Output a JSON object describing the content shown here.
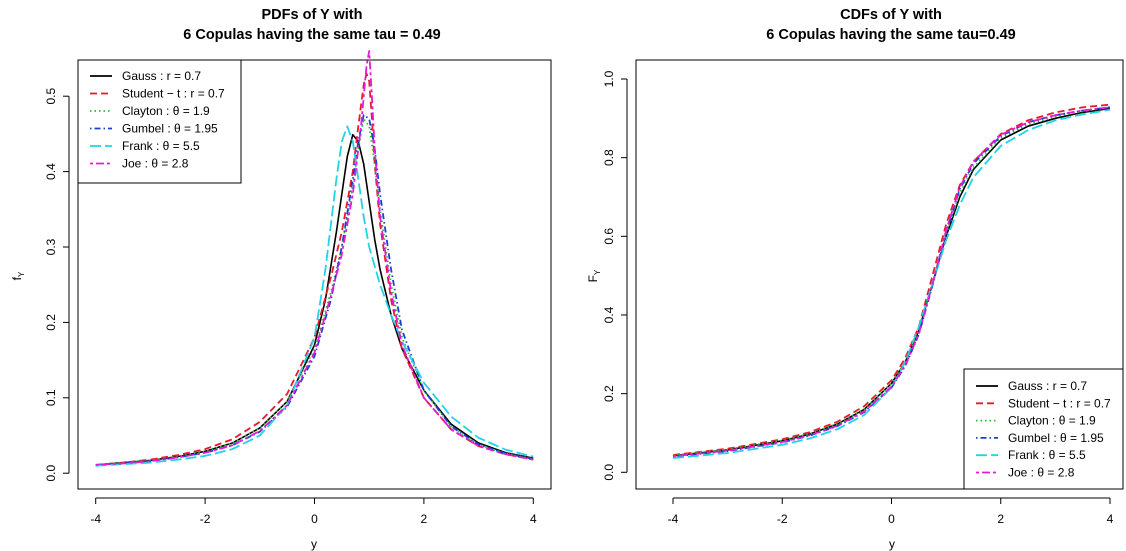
{
  "chart_data": [
    {
      "type": "line",
      "title": [
        "PDFs of Y with",
        "6 Copulas having the same tau = 0.49"
      ],
      "xlabel": "y",
      "ylabel": "f",
      "ylabel_sub": "Y",
      "xlim": [
        -4,
        4
      ],
      "ylim": [
        0,
        0.56
      ],
      "xticks": [
        "-4",
        "-2",
        "0",
        "2",
        "4"
      ],
      "yticks": [
        "0.0",
        "0.1",
        "0.2",
        "0.3",
        "0.4",
        "0.5"
      ],
      "legend_position": "top-left",
      "grid": false,
      "series": [
        {
          "name": "Gauss : r = 0.7",
          "color": "#000000",
          "dash": "solid",
          "x": [
            -4,
            -3.5,
            -3,
            -2.5,
            -2,
            -1.5,
            -1,
            -0.5,
            0,
            0.2,
            0.4,
            0.5,
            0.6,
            0.7,
            0.8,
            0.9,
            1,
            1.1,
            1.2,
            1.4,
            1.6,
            2,
            2.5,
            3,
            3.5,
            4
          ],
          "y": [
            0.011,
            0.014,
            0.017,
            0.022,
            0.029,
            0.04,
            0.06,
            0.095,
            0.17,
            0.23,
            0.32,
            0.37,
            0.42,
            0.449,
            0.44,
            0.41,
            0.36,
            0.31,
            0.27,
            0.21,
            0.165,
            0.11,
            0.065,
            0.04,
            0.027,
            0.02
          ]
        },
        {
          "name": "Student − t : r = 0.7",
          "color": "#e8192c",
          "dash": "dashed",
          "x": [
            -4,
            -3.5,
            -3,
            -2.5,
            -2,
            -1.5,
            -1,
            -0.5,
            0,
            0.3,
            0.5,
            0.7,
            0.8,
            0.9,
            0.95,
            1,
            1.05,
            1.1,
            1.2,
            1.4,
            1.6,
            2,
            2.5,
            3,
            3.5,
            4
          ],
          "y": [
            0.011,
            0.014,
            0.018,
            0.024,
            0.032,
            0.045,
            0.068,
            0.105,
            0.18,
            0.26,
            0.32,
            0.4,
            0.46,
            0.515,
            0.53,
            0.52,
            0.47,
            0.41,
            0.33,
            0.23,
            0.165,
            0.1,
            0.058,
            0.036,
            0.025,
            0.018
          ]
        },
        {
          "name": "Clayton : θ = 1.9",
          "color": "#1fbf2a",
          "dash": "dotted",
          "x": [
            -4,
            -3.5,
            -3,
            -2.5,
            -2,
            -1.5,
            -1,
            -0.5,
            0,
            0.3,
            0.5,
            0.7,
            0.8,
            0.9,
            1,
            1.1,
            1.2,
            1.4,
            1.6,
            2,
            2.5,
            3,
            3.5,
            4
          ],
          "y": [
            0.011,
            0.014,
            0.017,
            0.022,
            0.029,
            0.04,
            0.06,
            0.095,
            0.165,
            0.24,
            0.3,
            0.38,
            0.43,
            0.47,
            0.46,
            0.41,
            0.35,
            0.25,
            0.18,
            0.11,
            0.062,
            0.038,
            0.026,
            0.019
          ]
        },
        {
          "name": "Gumbel : θ = 1.95",
          "color": "#1a3fd6",
          "dash": "dotdash",
          "x": [
            -4,
            -3.5,
            -3,
            -2.5,
            -2,
            -1.5,
            -1,
            -0.5,
            0,
            0.3,
            0.5,
            0.7,
            0.8,
            0.9,
            1,
            1.1,
            1.2,
            1.4,
            1.6,
            2,
            2.5,
            3,
            3.5,
            4
          ],
          "y": [
            0.011,
            0.013,
            0.016,
            0.021,
            0.027,
            0.037,
            0.055,
            0.088,
            0.155,
            0.23,
            0.3,
            0.39,
            0.44,
            0.475,
            0.47,
            0.43,
            0.37,
            0.27,
            0.19,
            0.11,
            0.062,
            0.038,
            0.026,
            0.019
          ]
        },
        {
          "name": "Frank : θ = 5.5",
          "color": "#22d3e6",
          "dash": "longdash",
          "x": [
            -4,
            -3.5,
            -3,
            -2.5,
            -2,
            -1.5,
            -1,
            -0.5,
            0,
            0.2,
            0.4,
            0.5,
            0.6,
            0.7,
            0.8,
            0.9,
            1,
            1.2,
            1.4,
            1.6,
            2,
            2.5,
            3,
            3.5,
            4
          ],
          "y": [
            0.01,
            0.012,
            0.014,
            0.018,
            0.023,
            0.032,
            0.05,
            0.09,
            0.18,
            0.27,
            0.39,
            0.44,
            0.46,
            0.44,
            0.39,
            0.34,
            0.3,
            0.25,
            0.21,
            0.175,
            0.12,
            0.075,
            0.047,
            0.031,
            0.022
          ]
        },
        {
          "name": "Joe : θ = 2.8",
          "color": "#e619d6",
          "dash": "twodash",
          "x": [
            -4,
            -3.5,
            -3,
            -2.5,
            -2,
            -1.5,
            -1,
            -0.5,
            0,
            0.3,
            0.5,
            0.7,
            0.85,
            0.95,
            1,
            1.05,
            1.1,
            1.2,
            1.4,
            1.6,
            2,
            2.5,
            3,
            3.5,
            4
          ],
          "y": [
            0.011,
            0.013,
            0.016,
            0.021,
            0.027,
            0.037,
            0.056,
            0.09,
            0.16,
            0.235,
            0.29,
            0.37,
            0.46,
            0.54,
            0.56,
            0.5,
            0.43,
            0.34,
            0.24,
            0.17,
            0.1,
            0.058,
            0.036,
            0.025,
            0.018
          ]
        }
      ]
    },
    {
      "type": "line",
      "title": [
        "CDFs of Y with",
        "6 Copulas having the same tau=0.49"
      ],
      "xlabel": "y",
      "ylabel": "F",
      "ylabel_sub": "Y",
      "xlim": [
        -4,
        4
      ],
      "ylim": [
        0,
        1
      ],
      "xticks": [
        "-4",
        "-2",
        "0",
        "2",
        "4"
      ],
      "yticks": [
        "0.0",
        "0.2",
        "0.4",
        "0.6",
        "0.8",
        "1.0"
      ],
      "legend_position": "bottom-right",
      "grid": false,
      "series": [
        {
          "name": "Gauss : r = 0.7",
          "color": "#000000",
          "dash": "solid",
          "x": [
            -4,
            -3,
            -2,
            -1.5,
            -1,
            -0.5,
            0,
            0.25,
            0.5,
            0.75,
            1,
            1.25,
            1.5,
            2,
            2.5,
            3,
            3.5,
            4
          ],
          "y": [
            0.042,
            0.057,
            0.08,
            0.097,
            0.122,
            0.16,
            0.226,
            0.28,
            0.36,
            0.48,
            0.6,
            0.7,
            0.77,
            0.845,
            0.88,
            0.9,
            0.915,
            0.925
          ]
        },
        {
          "name": "Student − t : r = 0.7",
          "color": "#e8192c",
          "dash": "dashed",
          "x": [
            -4,
            -3,
            -2,
            -1.5,
            -1,
            -0.5,
            0,
            0.25,
            0.5,
            0.75,
            1,
            1.25,
            1.5,
            2,
            2.5,
            3,
            3.5,
            4
          ],
          "y": [
            0.044,
            0.06,
            0.084,
            0.102,
            0.128,
            0.168,
            0.234,
            0.29,
            0.37,
            0.5,
            0.63,
            0.73,
            0.79,
            0.86,
            0.895,
            0.915,
            0.928,
            0.935
          ]
        },
        {
          "name": "Clayton : θ = 1.9",
          "color": "#1fbf2a",
          "dash": "dotted",
          "x": [
            -4,
            -3,
            -2,
            -1.5,
            -1,
            -0.5,
            0,
            0.25,
            0.5,
            0.75,
            1,
            1.25,
            1.5,
            2,
            2.5,
            3,
            3.5,
            4
          ],
          "y": [
            0.043,
            0.058,
            0.081,
            0.098,
            0.123,
            0.161,
            0.226,
            0.28,
            0.36,
            0.48,
            0.605,
            0.71,
            0.775,
            0.85,
            0.885,
            0.905,
            0.918,
            0.928
          ]
        },
        {
          "name": "Gumbel : θ = 1.95",
          "color": "#1a3fd6",
          "dash": "dotdash",
          "x": [
            -4,
            -3,
            -2,
            -1.5,
            -1,
            -0.5,
            0,
            0.25,
            0.5,
            0.75,
            1,
            1.25,
            1.5,
            2,
            2.5,
            3,
            3.5,
            4
          ],
          "y": [
            0.04,
            0.054,
            0.076,
            0.093,
            0.117,
            0.153,
            0.215,
            0.27,
            0.35,
            0.475,
            0.61,
            0.72,
            0.785,
            0.855,
            0.89,
            0.908,
            0.92,
            0.928
          ]
        },
        {
          "name": "Frank : θ = 5.5",
          "color": "#22d3e6",
          "dash": "longdash",
          "x": [
            -4,
            -3,
            -2,
            -1.5,
            -1,
            -0.5,
            0,
            0.25,
            0.5,
            0.75,
            1,
            1.25,
            1.5,
            2,
            2.5,
            3,
            3.5,
            4
          ],
          "y": [
            0.036,
            0.049,
            0.07,
            0.086,
            0.109,
            0.146,
            0.215,
            0.28,
            0.37,
            0.48,
            0.59,
            0.68,
            0.75,
            0.83,
            0.87,
            0.895,
            0.91,
            0.922
          ]
        },
        {
          "name": "Joe : θ = 2.8",
          "color": "#e619d6",
          "dash": "twodash",
          "x": [
            -4,
            -3,
            -2,
            -1.5,
            -1,
            -0.5,
            0,
            0.25,
            0.5,
            0.75,
            1,
            1.25,
            1.5,
            2,
            2.5,
            3,
            3.5,
            4
          ],
          "y": [
            0.041,
            0.055,
            0.077,
            0.094,
            0.118,
            0.155,
            0.218,
            0.272,
            0.352,
            0.478,
            0.615,
            0.725,
            0.79,
            0.858,
            0.89,
            0.908,
            0.92,
            0.928
          ]
        }
      ]
    }
  ]
}
